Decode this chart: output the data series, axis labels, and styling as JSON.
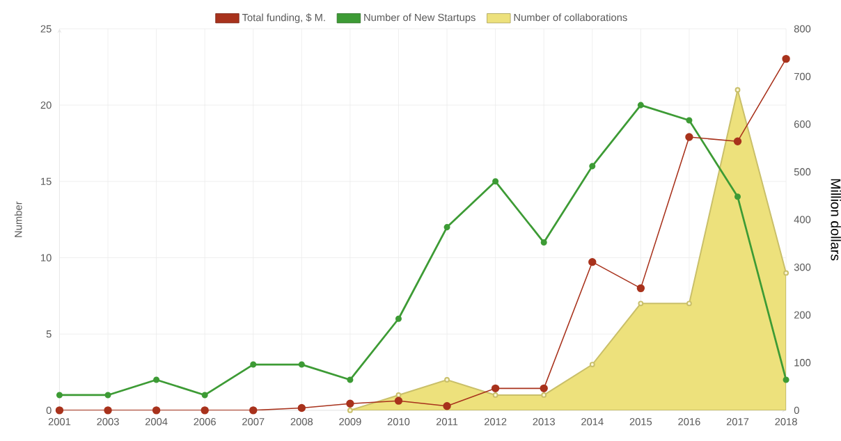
{
  "chart_data": {
    "type": "line",
    "ylabel": "Number",
    "y2label": "Million dollars",
    "categories": [
      "2001",
      "2003",
      "2004",
      "2006",
      "2007",
      "2008",
      "2009",
      "2010",
      "2011",
      "2012",
      "2013",
      "2014",
      "2015",
      "2016",
      "2017",
      "2018"
    ],
    "series": [
      {
        "name": "Total funding, $ M.",
        "color": "#a8321c",
        "axis": "y2",
        "values": [
          0,
          0,
          0,
          0,
          0,
          5,
          14,
          20,
          9,
          46,
          46,
          311,
          256,
          573,
          564,
          737
        ]
      },
      {
        "name": "Number of New Startups",
        "color": "#3d9b35",
        "values": [
          1,
          1,
          2,
          1,
          3,
          3,
          2,
          6,
          12,
          15,
          11,
          16,
          20,
          19,
          14,
          2
        ]
      },
      {
        "name": "Number of collaborations",
        "type": "area",
        "color": "#ede17c",
        "values": [
          null,
          null,
          null,
          null,
          null,
          null,
          0,
          1,
          2,
          1,
          1,
          3,
          7,
          7,
          21,
          9
        ]
      }
    ],
    "ylim": [
      0,
      25
    ],
    "yticks": [
      0,
      5,
      10,
      15,
      20,
      25
    ],
    "y2lim": [
      0,
      800
    ],
    "y2ticks": [
      0,
      100,
      200,
      300,
      400,
      500,
      600,
      700,
      800
    ],
    "grid": true,
    "legend": "top",
    "marker": "circle"
  }
}
